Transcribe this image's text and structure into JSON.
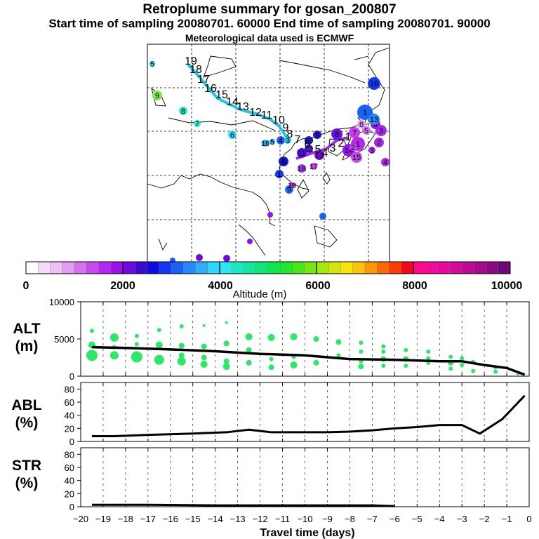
{
  "header": {
    "title": "Retroplume summary for gosan_200807",
    "subtitle": "Start time of sampling 20080701. 60000     End time of sampling 20080701. 90000",
    "meteo": "Meteorological data used is ECMWF"
  },
  "colorbar": {
    "tick_labels": [
      "0",
      "2000",
      "4000",
      "6000",
      "8000",
      "10000"
    ],
    "title": "Altitude (m)"
  },
  "chart_data": [
    {
      "type": "scatter",
      "name": "ALT",
      "ylabel": "ALT\n(m)",
      "ylabel_lines": [
        "ALT",
        "(m)"
      ],
      "xlabel": "Travel time (days)",
      "xlim": [
        -20,
        0
      ],
      "ylim": [
        0,
        10000
      ],
      "yticks": [
        0,
        5000,
        10000
      ],
      "mean_line": {
        "x": [
          -19.5,
          -18,
          -16,
          -14,
          -12,
          -10,
          -8,
          -6,
          -4,
          -3,
          -2,
          -1,
          -0.2
        ],
        "y": [
          3900,
          3800,
          3600,
          3350,
          3000,
          2800,
          2300,
          2200,
          2000,
          2000,
          1500,
          1100,
          200
        ]
      },
      "points": [
        {
          "x": -19.5,
          "y": 2800,
          "s": 8
        },
        {
          "x": -19.5,
          "y": 4200,
          "s": 5
        },
        {
          "x": -19.5,
          "y": 6100,
          "s": 3
        },
        {
          "x": -18.5,
          "y": 2800,
          "s": 6
        },
        {
          "x": -18.5,
          "y": 5200,
          "s": 6
        },
        {
          "x": -18.5,
          "y": 3900,
          "s": 3
        },
        {
          "x": -17.5,
          "y": 2600,
          "s": 8
        },
        {
          "x": -17.5,
          "y": 5400,
          "s": 3
        },
        {
          "x": -17.5,
          "y": 4300,
          "s": 3
        },
        {
          "x": -16.5,
          "y": 2200,
          "s": 7
        },
        {
          "x": -16.5,
          "y": 4200,
          "s": 5
        },
        {
          "x": -16.5,
          "y": 6200,
          "s": 3
        },
        {
          "x": -15.5,
          "y": 2000,
          "s": 6
        },
        {
          "x": -15.5,
          "y": 2800,
          "s": 4
        },
        {
          "x": -15.5,
          "y": 4100,
          "s": 4
        },
        {
          "x": -15.5,
          "y": 6700,
          "s": 3
        },
        {
          "x": -14.5,
          "y": 1600,
          "s": 5
        },
        {
          "x": -14.5,
          "y": 2500,
          "s": 4
        },
        {
          "x": -14.5,
          "y": 4000,
          "s": 4
        },
        {
          "x": -14.5,
          "y": 6800,
          "s": 2
        },
        {
          "x": -13.5,
          "y": 1300,
          "s": 5
        },
        {
          "x": -13.5,
          "y": 2000,
          "s": 4
        },
        {
          "x": -13.5,
          "y": 4400,
          "s": 4
        },
        {
          "x": -13.5,
          "y": 7200,
          "s": 2
        },
        {
          "x": -12.5,
          "y": 1800,
          "s": 4
        },
        {
          "x": -12.5,
          "y": 3500,
          "s": 4
        },
        {
          "x": -12.5,
          "y": 5300,
          "s": 5
        },
        {
          "x": -11.5,
          "y": 1200,
          "s": 4
        },
        {
          "x": -11.5,
          "y": 2300,
          "s": 3
        },
        {
          "x": -11.5,
          "y": 5200,
          "s": 5
        },
        {
          "x": -10.5,
          "y": 1500,
          "s": 5
        },
        {
          "x": -10.5,
          "y": 5300,
          "s": 5
        },
        {
          "x": -10.5,
          "y": 2600,
          "s": 3
        },
        {
          "x": -9.5,
          "y": 1800,
          "s": 4
        },
        {
          "x": -9.5,
          "y": 5000,
          "s": 4
        },
        {
          "x": -8.5,
          "y": 2800,
          "s": 3
        },
        {
          "x": -8.5,
          "y": 4600,
          "s": 4
        },
        {
          "x": -7.5,
          "y": 1300,
          "s": 4
        },
        {
          "x": -7.5,
          "y": 2000,
          "s": 3
        },
        {
          "x": -7.5,
          "y": 3300,
          "s": 3
        },
        {
          "x": -7.5,
          "y": 4500,
          "s": 3
        },
        {
          "x": -6.5,
          "y": 1400,
          "s": 3
        },
        {
          "x": -6.5,
          "y": 2300,
          "s": 4
        },
        {
          "x": -6.5,
          "y": 3300,
          "s": 3
        },
        {
          "x": -6.5,
          "y": 4000,
          "s": 3
        },
        {
          "x": -5.5,
          "y": 1400,
          "s": 3
        },
        {
          "x": -5.5,
          "y": 2300,
          "s": 4
        },
        {
          "x": -5.5,
          "y": 3500,
          "s": 3
        },
        {
          "x": -4.5,
          "y": 1800,
          "s": 3
        },
        {
          "x": -4.5,
          "y": 2400,
          "s": 3
        },
        {
          "x": -4.5,
          "y": 3300,
          "s": 3
        },
        {
          "x": -3.5,
          "y": 1000,
          "s": 3
        },
        {
          "x": -3.5,
          "y": 1800,
          "s": 4
        },
        {
          "x": -3.5,
          "y": 2600,
          "s": 3
        },
        {
          "x": -3.0,
          "y": 1500,
          "s": 3
        },
        {
          "x": -3.0,
          "y": 2400,
          "s": 3
        },
        {
          "x": -2.5,
          "y": 700,
          "s": 3
        },
        {
          "x": -2.5,
          "y": 1900,
          "s": 3
        },
        {
          "x": -1.5,
          "y": 1200,
          "s": 3
        },
        {
          "x": -1.5,
          "y": 600,
          "s": 3
        },
        {
          "x": -0.5,
          "y": 300,
          "s": 2
        }
      ]
    },
    {
      "type": "line",
      "name": "ABL",
      "ylabel_lines": [
        "ABL",
        "(%)"
      ],
      "xlim": [
        -20,
        0
      ],
      "ylim": [
        0,
        90
      ],
      "yticks": [
        0,
        20,
        40,
        60,
        80
      ],
      "x": [
        -19.5,
        -18.5,
        -17,
        -15,
        -13.5,
        -12.5,
        -11.5,
        -10,
        -9,
        -8,
        -7,
        -6,
        -5,
        -4,
        -3,
        -2.2,
        -1.2,
        -0.2
      ],
      "y": [
        8,
        8,
        10,
        12,
        14,
        18,
        14,
        14,
        14,
        15,
        17,
        20,
        22,
        25,
        25,
        12,
        34,
        70
      ]
    },
    {
      "type": "line",
      "name": "STR",
      "ylabel_lines": [
        "STR",
        "(%)"
      ],
      "xlim": [
        -20,
        0
      ],
      "ylim": [
        0,
        90
      ],
      "yticks": [
        0,
        20,
        40,
        60,
        80
      ],
      "xticks": [
        -20,
        -19,
        -18,
        -17,
        -16,
        -15,
        -14,
        -13,
        -12,
        -11,
        -10,
        -9,
        -8,
        -7,
        -6,
        -5,
        -4,
        -3,
        -2,
        -1,
        0
      ],
      "x": [
        -19.5,
        -17,
        -14,
        -12,
        -10,
        -8,
        -7,
        -6
      ],
      "y": [
        3,
        3,
        2,
        2,
        2,
        2,
        2,
        1
      ]
    }
  ],
  "map": {
    "track_labels": [
      "19",
      "18",
      "17",
      "16",
      "15",
      "14",
      "13",
      "12",
      "11",
      "10",
      "9",
      "8",
      "7",
      "6",
      "5",
      "4",
      "3",
      "2",
      "1"
    ],
    "scattered_labels": [
      "5",
      "9",
      "8",
      "7",
      "6",
      "16",
      "5",
      "4",
      "3",
      "6",
      "1",
      "9",
      "19",
      "18",
      "17",
      "13",
      "12",
      "11",
      "10",
      "9",
      "8",
      "7",
      "6",
      "5",
      "4",
      "3",
      "2",
      "1",
      "14",
      "15",
      "2",
      "3",
      "4",
      "1",
      "13",
      "16"
    ]
  }
}
